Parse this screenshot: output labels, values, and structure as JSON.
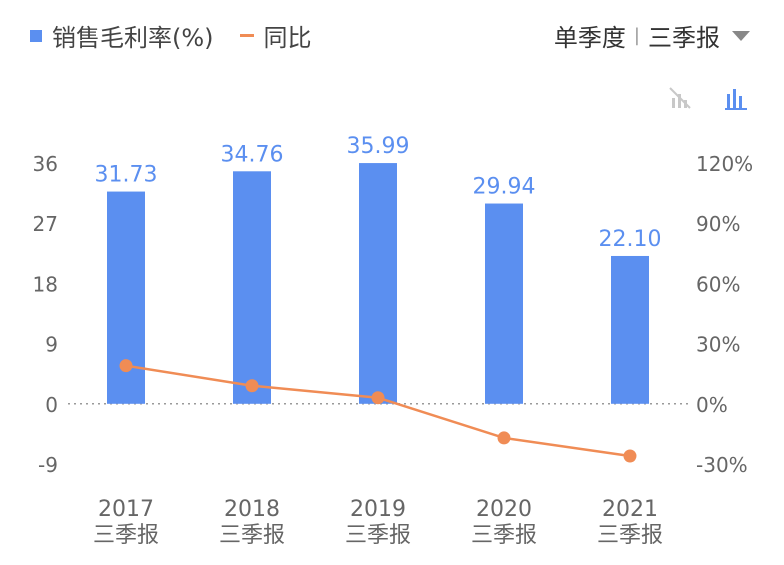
{
  "legend": {
    "bar_label": "销售毛利率(%)",
    "line_label": "同比"
  },
  "period": {
    "mode": "单季度",
    "separator": "|",
    "quarter": "三季报"
  },
  "icons": {
    "hide_line": "line-chart-off-icon",
    "bar": "bar-chart-icon"
  },
  "colors": {
    "bar": "#5b8ff0",
    "line": "#f08c55",
    "label": "#5b8ff0",
    "axis_text": "#666666"
  },
  "chart_data": {
    "type": "bar",
    "categories": [
      "2017",
      "2018",
      "2019",
      "2020",
      "2021"
    ],
    "category_sublabels": [
      "三季报",
      "三季报",
      "三季报",
      "三季报",
      "三季报"
    ],
    "series": [
      {
        "name": "销售毛利率(%)",
        "type": "bar",
        "axis": "left",
        "values": [
          31.73,
          34.76,
          35.99,
          29.94,
          22.1
        ],
        "labels": [
          "31.73",
          "34.76",
          "35.99",
          "29.94",
          "22.10"
        ]
      },
      {
        "name": "同比",
        "type": "line",
        "axis": "right",
        "values": [
          19,
          9,
          3,
          -17,
          -26
        ]
      }
    ],
    "y_left": {
      "ticks": [
        "36",
        "27",
        "18",
        "9",
        "0",
        "-9"
      ],
      "range": [
        -9,
        36
      ]
    },
    "y_right": {
      "ticks": [
        "120%",
        "90%",
        "60%",
        "30%",
        "0%",
        "-30%"
      ],
      "range": [
        -30,
        120
      ]
    },
    "grid": false
  }
}
